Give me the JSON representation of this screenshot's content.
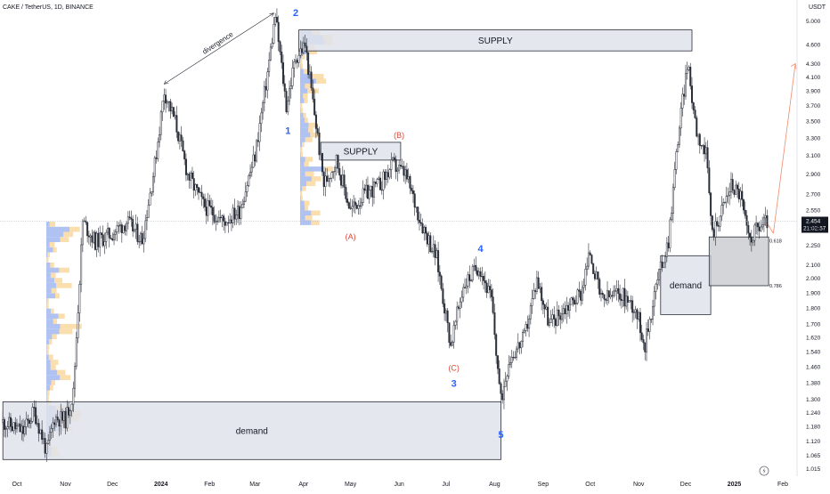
{
  "header": {
    "symbol_title": "CAKE / TetherUS, 1D, BINANCE",
    "currency": "USDT"
  },
  "chart_data": {
    "type": "candlestick",
    "title": "CAKE / TetherUS, 1D, BINANCE",
    "y_unit": "USDT",
    "y_scale": "log",
    "ylim": [
      0.99,
      5.2
    ],
    "y_ticks": [
      "5.000",
      "4.600",
      "4.300",
      "4.100",
      "3.900",
      "3.700",
      "3.500",
      "3.300",
      "3.100",
      "2.900",
      "2.700",
      "2.550",
      "2.400",
      "2.250",
      "2.100",
      "2.000",
      "1.900",
      "1.800",
      "1.700",
      "1.620",
      "1.540",
      "1.460",
      "1.380",
      "1.300",
      "1.240",
      "1.180",
      "1.120",
      "1.065",
      "1.015"
    ],
    "x_ticks": [
      "Oct",
      "Nov",
      "Dec",
      "2024",
      "Feb",
      "Mar",
      "Apr",
      "May",
      "Jun",
      "Jul",
      "Aug",
      "Sep",
      "Oct",
      "Nov",
      "Dec",
      "2025",
      "Feb"
    ],
    "x_range": [
      "2023-09-22",
      "2025-02-15"
    ],
    "last_price": "2.454",
    "countdown": "21:02:57",
    "price_path": [
      {
        "date": "2023-09-22",
        "price": 1.2
      },
      {
        "date": "2023-10-05",
        "price": 1.16
      },
      {
        "date": "2023-10-12",
        "price": 1.25
      },
      {
        "date": "2023-10-20",
        "price": 1.08
      },
      {
        "date": "2023-10-25",
        "price": 1.22
      },
      {
        "date": "2023-11-01",
        "price": 1.21
      },
      {
        "date": "2023-11-06",
        "price": 1.33
      },
      {
        "date": "2023-11-12",
        "price": 2.45
      },
      {
        "date": "2023-11-20",
        "price": 2.28
      },
      {
        "date": "2023-12-01",
        "price": 2.35
      },
      {
        "date": "2023-12-10",
        "price": 2.45
      },
      {
        "date": "2023-12-20",
        "price": 2.3
      },
      {
        "date": "2023-12-28",
        "price": 3.0
      },
      {
        "date": "2024-01-03",
        "price": 3.9
      },
      {
        "date": "2024-01-10",
        "price": 3.5
      },
      {
        "date": "2024-01-18",
        "price": 2.9
      },
      {
        "date": "2024-01-28",
        "price": 2.6
      },
      {
        "date": "2024-02-10",
        "price": 2.45
      },
      {
        "date": "2024-02-20",
        "price": 2.55
      },
      {
        "date": "2024-03-01",
        "price": 3.1
      },
      {
        "date": "2024-03-08",
        "price": 4.0
      },
      {
        "date": "2024-03-14",
        "price": 5.1
      },
      {
        "date": "2024-03-21",
        "price": 3.7
      },
      {
        "date": "2024-03-27",
        "price": 4.4
      },
      {
        "date": "2024-04-02",
        "price": 4.6
      },
      {
        "date": "2024-04-08",
        "price": 3.6
      },
      {
        "date": "2024-04-14",
        "price": 2.8
      },
      {
        "date": "2024-04-22",
        "price": 3.05
      },
      {
        "date": "2024-05-01",
        "price": 2.55
      },
      {
        "date": "2024-05-10",
        "price": 2.7
      },
      {
        "date": "2024-05-20",
        "price": 2.8
      },
      {
        "date": "2024-05-28",
        "price": 3.0
      },
      {
        "date": "2024-06-05",
        "price": 2.9
      },
      {
        "date": "2024-06-15",
        "price": 2.45
      },
      {
        "date": "2024-06-25",
        "price": 2.15
      },
      {
        "date": "2024-07-04",
        "price": 1.58
      },
      {
        "date": "2024-07-12",
        "price": 1.95
      },
      {
        "date": "2024-07-22",
        "price": 2.1
      },
      {
        "date": "2024-07-30",
        "price": 1.85
      },
      {
        "date": "2024-08-05",
        "price": 1.29
      },
      {
        "date": "2024-08-10",
        "price": 1.5
      },
      {
        "date": "2024-08-20",
        "price": 1.62
      },
      {
        "date": "2024-08-28",
        "price": 2.0
      },
      {
        "date": "2024-09-05",
        "price": 1.7
      },
      {
        "date": "2024-09-15",
        "price": 1.8
      },
      {
        "date": "2024-09-25",
        "price": 1.9
      },
      {
        "date": "2024-10-01",
        "price": 2.2
      },
      {
        "date": "2024-10-08",
        "price": 1.85
      },
      {
        "date": "2024-10-20",
        "price": 1.9
      },
      {
        "date": "2024-10-30",
        "price": 1.8
      },
      {
        "date": "2024-11-05",
        "price": 1.58
      },
      {
        "date": "2024-11-12",
        "price": 1.95
      },
      {
        "date": "2024-11-20",
        "price": 2.3
      },
      {
        "date": "2024-11-26",
        "price": 3.3
      },
      {
        "date": "2024-12-02",
        "price": 4.3
      },
      {
        "date": "2024-12-08",
        "price": 3.4
      },
      {
        "date": "2024-12-14",
        "price": 3.1
      },
      {
        "date": "2024-12-18",
        "price": 2.35
      },
      {
        "date": "2024-12-24",
        "price": 2.55
      },
      {
        "date": "2024-12-30",
        "price": 2.8
      },
      {
        "date": "2025-01-05",
        "price": 2.7
      },
      {
        "date": "2025-01-10",
        "price": 2.3
      },
      {
        "date": "2025-01-16",
        "price": 2.4
      },
      {
        "date": "2025-01-22",
        "price": 2.454
      }
    ],
    "zones": [
      {
        "label": "SUPPLY",
        "from": "2024-03-29",
        "to": "2024-12-05",
        "low": 4.5,
        "high": 4.85
      },
      {
        "label": "SUPPLY",
        "from": "2024-04-12",
        "to": "2024-06-02",
        "low": 3.05,
        "high": 3.25
      },
      {
        "label": "demand",
        "from": "2023-09-22",
        "to": "2024-08-05",
        "low": 1.05,
        "high": 1.29
      },
      {
        "label": "demand",
        "from": "2024-11-15",
        "to": "2024-12-17",
        "low": 1.76,
        "high": 2.17
      },
      {
        "label": "",
        "from": "2024-12-16",
        "to": "2025-01-23",
        "low": 1.95,
        "high": 2.32
      }
    ],
    "wave_labels": [
      {
        "text": "1",
        "date": "2024-03-22",
        "price": 3.35,
        "color": "blue"
      },
      {
        "text": "2",
        "date": "2024-03-27",
        "price": 5.1,
        "color": "blue"
      },
      {
        "text": "3",
        "date": "2024-07-06",
        "price": 1.36,
        "color": "blue"
      },
      {
        "text": "4",
        "date": "2024-07-23",
        "price": 2.2,
        "color": "blue"
      },
      {
        "text": "5",
        "date": "2024-08-05",
        "price": 1.135,
        "color": "blue"
      },
      {
        "text": "(A)",
        "date": "2024-05-01",
        "price": 2.3,
        "color": "red"
      },
      {
        "text": "(B)",
        "date": "2024-06-01",
        "price": 3.3,
        "color": "red"
      },
      {
        "text": "(C)",
        "date": "2024-07-06",
        "price": 1.44,
        "color": "red"
      }
    ],
    "annotations": [
      {
        "text": "divergence",
        "from_date": "2024-01-03",
        "from_price": 4.0,
        "to_date": "2024-03-13",
        "to_price": 5.15
      }
    ],
    "fib_levels": [
      {
        "label": "0.618",
        "price": 2.29
      },
      {
        "label": "0.786",
        "price": 1.95
      }
    ],
    "projection": {
      "from_date": "2025-01-26",
      "from_price": 2.35,
      "to_date": "2025-02-09",
      "to_price": 4.3
    }
  },
  "colors": {
    "accent": "#2962ff",
    "up": "#089981",
    "down": "#f23645",
    "candle": "#2a2e39",
    "zone": "#e0e3eb",
    "projection": "#f28b6b",
    "volume_blue": "#6f8fe8",
    "volume_yellow": "#f5c36b"
  },
  "icons": {
    "flash": "flash-icon"
  }
}
